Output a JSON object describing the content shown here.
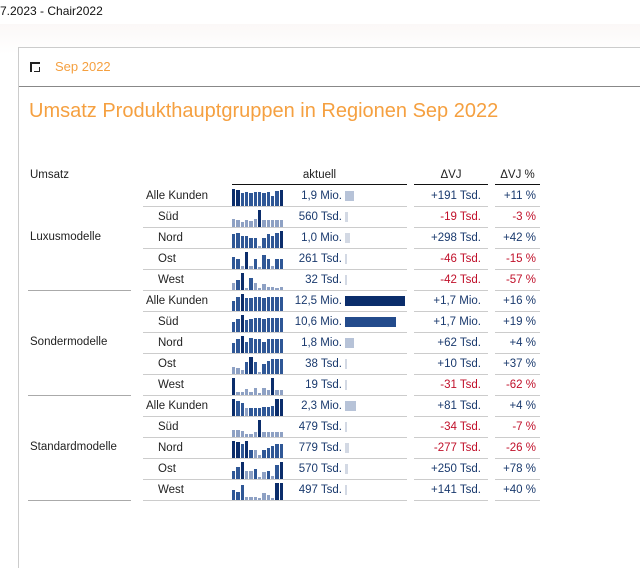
{
  "window": {
    "title": "7.2023 - Chair2022"
  },
  "pane": {
    "title": "Sep 2022"
  },
  "report": {
    "title": "Umsatz Produkthauptgruppen in Regionen Sep 2022"
  },
  "table": {
    "row_header": "Umsatz",
    "columns": {
      "aktuell": "aktuell",
      "dvj": "ΔVJ",
      "dvj_pct": "ΔVJ %"
    },
    "colors": {
      "positive": "#1a3a6e",
      "negative": "#c0102a",
      "bar_dark": "#0b2d6b",
      "bar_mid": "#234b8c",
      "bar_light": "#b7c3d8",
      "bar_faint": "#d3d9e4"
    },
    "groups": [
      {
        "label": "Luxusmodelle",
        "rows": [
          {
            "label": "Alle Kunden",
            "value": "1,9 Mio.",
            "amount": 1.9,
            "dvj": "+191 Tsd.",
            "dvj_pct": "+11 %",
            "trend": [
              1,
              0.95,
              0.75,
              0.8,
              0.75,
              0.8,
              0.8,
              0.75,
              0.85,
              0.6,
              0.9,
              0.95
            ]
          },
          {
            "label": "Süd",
            "value": "560 Tsd.",
            "amount": 0.56,
            "dvj": "-19 Tsd.",
            "dvj_pct": "-3 %",
            "trend": [
              0.45,
              0.4,
              0.3,
              0.4,
              0.35,
              0.45,
              1,
              0.4,
              0.4,
              0.4,
              0.4,
              0.4
            ]
          },
          {
            "label": "Nord",
            "value": "1,0 Mio.",
            "amount": 1.0,
            "dvj": "+298 Tsd.",
            "dvj_pct": "+42 %",
            "trend": [
              0.8,
              0.9,
              0.7,
              0.7,
              0.6,
              0.6,
              0.1,
              0.6,
              0.85,
              0.7,
              0.9,
              1
            ]
          },
          {
            "label": "Ost",
            "value": "261 Tsd.",
            "amount": 0.261,
            "dvj": "-46 Tsd.",
            "dvj_pct": "-15 %",
            "trend": [
              0.7,
              0.6,
              0.2,
              1,
              0.2,
              0.6,
              0.1,
              0.85,
              0.6,
              0.2,
              0.6,
              0.6
            ]
          },
          {
            "label": "West",
            "value": "32 Tsd.",
            "amount": 0.032,
            "dvj": "-42 Tsd.",
            "dvj_pct": "-57 %",
            "trend": [
              0.4,
              0.6,
              1,
              0.1,
              0.7,
              0.4,
              0.1,
              0.35,
              0.15,
              0.2,
              0.1,
              0.2
            ]
          }
        ]
      },
      {
        "label": "Sondermodelle",
        "rows": [
          {
            "label": "Alle Kunden",
            "value": "12,5 Mio.",
            "amount": 12.5,
            "dvj": "+1,7 Mio.",
            "dvj_pct": "+16 %",
            "trend": [
              0.6,
              0.8,
              1,
              0.75,
              0.75,
              0.8,
              0.85,
              0.75,
              0.85,
              0.8,
              0.8,
              0.8
            ]
          },
          {
            "label": "Süd",
            "value": "10,6 Mio.",
            "amount": 10.6,
            "dvj": "+1,7 Mio.",
            "dvj_pct": "+19 %",
            "trend": [
              0.6,
              0.75,
              1,
              0.7,
              0.75,
              0.8,
              0.85,
              0.75,
              0.85,
              0.8,
              0.8,
              0.8
            ]
          },
          {
            "label": "Nord",
            "value": "1,8 Mio.",
            "amount": 1.8,
            "dvj": "+62 Tsd.",
            "dvj_pct": "+4 %",
            "trend": [
              0.6,
              0.8,
              1,
              0.65,
              0.9,
              0.85,
              0.8,
              0.65,
              0.85,
              0.85,
              0.85,
              0.85
            ]
          },
          {
            "label": "Ost",
            "value": "38 Tsd.",
            "amount": 0.038,
            "dvj": "+10 Tsd.",
            "dvj_pct": "+37 %",
            "trend": [
              0.4,
              0.35,
              0.25,
              0.7,
              1,
              0.7,
              0.1,
              0.6,
              0.75,
              0.9,
              0.9,
              0.9
            ]
          },
          {
            "label": "West",
            "value": "19 Tsd.",
            "amount": 0.019,
            "dvj": "-31 Tsd.",
            "dvj_pct": "-62 %",
            "trend": [
              1,
              0.2,
              0.2,
              0.35,
              0.2,
              0.4,
              0.1,
              0.4,
              0.3,
              1,
              0.3,
              0.3
            ]
          }
        ]
      },
      {
        "label": "Standardmodelle",
        "rows": [
          {
            "label": "Alle Kunden",
            "value": "2,3 Mio.",
            "amount": 2.3,
            "dvj": "+81 Tsd.",
            "dvj_pct": "+4 %",
            "trend": [
              1,
              0.9,
              0.75,
              0.45,
              0.5,
              0.5,
              0.5,
              0.55,
              0.55,
              0.6,
              1,
              1
            ]
          },
          {
            "label": "Süd",
            "value": "479 Tsd.",
            "amount": 0.479,
            "dvj": "-34 Tsd.",
            "dvj_pct": "-7 %",
            "trend": [
              0.4,
              0.4,
              0.35,
              0.2,
              0.2,
              0.3,
              1,
              0.3,
              0.3,
              0.3,
              0.3,
              0.3
            ]
          },
          {
            "label": "Nord",
            "value": "779 Tsd.",
            "amount": 0.779,
            "dvj": "-277 Tsd.",
            "dvj_pct": "-26 %",
            "trend": [
              1,
              0.95,
              0.8,
              1,
              0.5,
              0.45,
              0.15,
              0.5,
              0.6,
              0.7,
              0.8,
              0.8
            ]
          },
          {
            "label": "Ost",
            "value": "570 Tsd.",
            "amount": 0.57,
            "dvj": "+250 Tsd.",
            "dvj_pct": "+78 %",
            "trend": [
              0.5,
              0.7,
              1,
              0.45,
              0.45,
              0.6,
              0.1,
              0.4,
              0.5,
              0.2,
              0.8,
              1
            ]
          },
          {
            "label": "West",
            "value": "497 Tsd.",
            "amount": 0.497,
            "dvj": "+141 Tsd.",
            "dvj_pct": "+40 %",
            "trend": [
              0.6,
              0.5,
              0.9,
              0.2,
              0.15,
              0.15,
              0.1,
              0.4,
              0.3,
              0.1,
              1,
              1
            ]
          }
        ]
      }
    ]
  }
}
